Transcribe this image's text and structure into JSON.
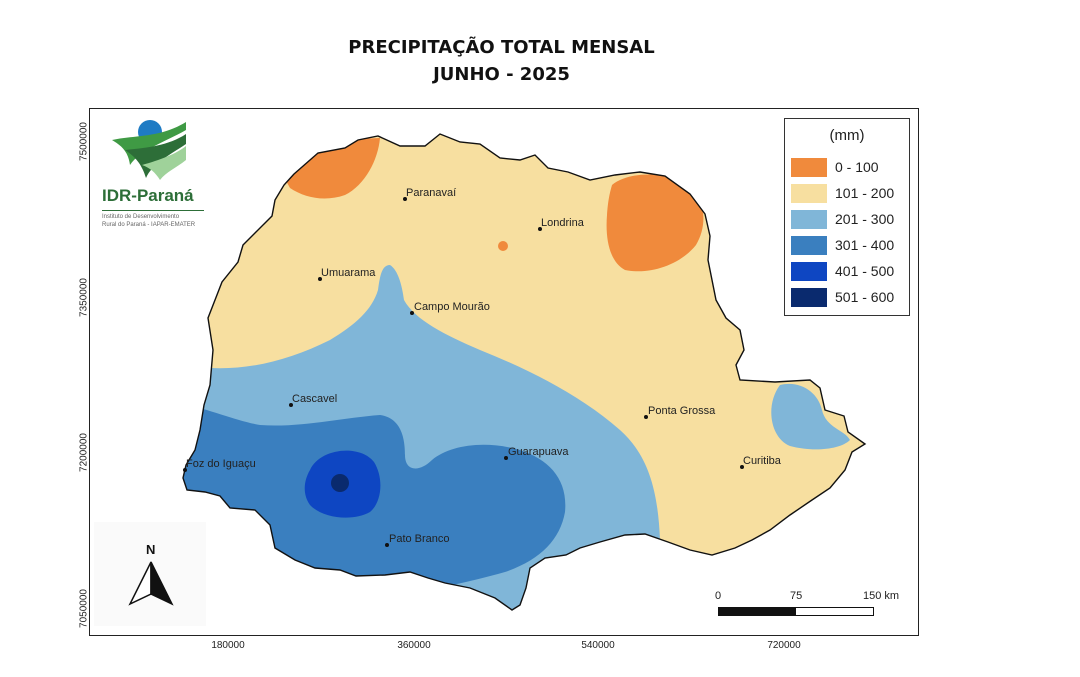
{
  "title": {
    "line1": "PRECIPITAÇÃO TOTAL MENSAL",
    "line2": "JUNHO - 2025"
  },
  "logo": {
    "name": "IDR-Paraná",
    "sub1": "Instituto de Desenvolvimento",
    "sub2": "Rural do Paraná - IAPAR-EMATER"
  },
  "axes": {
    "y_ticks": [
      "7500000",
      "7350000",
      "7200000",
      "7050000"
    ],
    "x_ticks": [
      "180000",
      "360000",
      "540000",
      "720000"
    ]
  },
  "legend": {
    "title": "(mm)",
    "items": [
      {
        "label": "0 - 100",
        "color": "#f08a3c"
      },
      {
        "label": "101 - 200",
        "color": "#f7dfa0"
      },
      {
        "label": "201 - 300",
        "color": "#80b6d8"
      },
      {
        "label": "301 - 400",
        "color": "#3a7fbf"
      },
      {
        "label": "401 - 500",
        "color": "#0e46c2"
      },
      {
        "label": "501 - 600",
        "color": "#0a2a6e"
      }
    ]
  },
  "cities": [
    {
      "name": "Paranavaí"
    },
    {
      "name": "Londrina"
    },
    {
      "name": "Umuarama"
    },
    {
      "name": "Campo Mourão"
    },
    {
      "name": "Cascavel"
    },
    {
      "name": "Ponta Grossa"
    },
    {
      "name": "Guarapuava"
    },
    {
      "name": "Foz do Iguaçu"
    },
    {
      "name": "Curitiba"
    },
    {
      "name": "Pato Branco"
    }
  ],
  "north_arrow": {
    "label": "N"
  },
  "scale_bar": {
    "labels": [
      "0",
      "75",
      "150 km"
    ]
  }
}
